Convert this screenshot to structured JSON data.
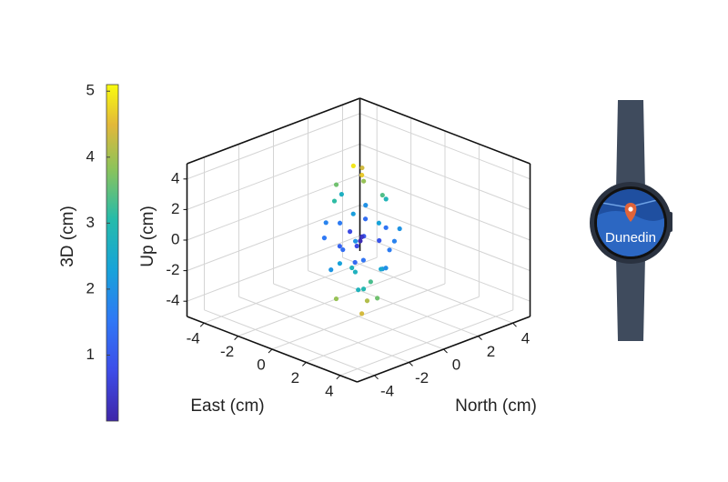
{
  "chart_data": {
    "type": "scatter3d",
    "xlabel": "East (cm)",
    "ylabel": "North (cm)",
    "zlabel": "Up (cm)",
    "xlim": [
      -5,
      5
    ],
    "xticks": [
      -4,
      -2,
      0,
      2,
      4
    ],
    "ylim": [
      -5,
      5
    ],
    "yticks": [
      -4,
      -2,
      0,
      2,
      4
    ],
    "zlim": [
      -5,
      5
    ],
    "zticks": [
      -4,
      -2,
      0,
      2,
      4
    ],
    "grid": true,
    "colormap": "parula",
    "colorbar": {
      "label": "3D (cm)",
      "lim": [
        0,
        5.1
      ],
      "ticks": [
        1,
        2,
        3,
        4,
        5
      ]
    },
    "x": [
      0.5,
      -0.4,
      0.2,
      -0.8,
      1.0,
      -0.3,
      0.7,
      -1.2,
      0.3,
      1.4,
      -0.6,
      0.1,
      -1.0,
      0.9,
      -0.2,
      1.6,
      -1.5,
      0.4,
      0.0,
      -0.5,
      1.1,
      -0.9,
      0.6,
      -1.3,
      0.2,
      1.3,
      -0.4,
      0.8,
      -1.1,
      0.3,
      1.0,
      -0.7,
      0.5,
      -0.2,
      0.9,
      -0.6,
      0.1,
      0.7,
      -1.0,
      1.5,
      -1.4,
      0.2,
      -0.1,
      0.4,
      -0.3
    ],
    "y": [
      -0.3,
      0.6,
      0.1,
      -0.5,
      0.4,
      -1.1,
      0.9,
      0.2,
      -0.6,
      -0.2,
      1.0,
      0.3,
      -0.9,
      0.7,
      -0.3,
      0.5,
      0.4,
      -1.3,
      0.1,
      0.8,
      -0.8,
      -0.2,
      1.2,
      1.1,
      -0.4,
      0.3,
      -1.2,
      0.6,
      0.0,
      1.0,
      -1.0,
      0.5,
      -0.2,
      0.9,
      0.2,
      -0.7,
      0.4,
      -0.5,
      0.6,
      0.9,
      -0.6,
      0.0,
      -0.2,
      0.8,
      0.2
    ],
    "z": [
      4.6,
      4.3,
      3.9,
      3.5,
      3.2,
      2.9,
      2.6,
      2.4,
      2.1,
      1.8,
      1.6,
      1.3,
      1.1,
      0.9,
      0.6,
      0.4,
      0.3,
      0.1,
      -0.1,
      -0.3,
      -0.5,
      -0.7,
      -0.9,
      -1.1,
      -1.2,
      -1.4,
      -1.6,
      -1.8,
      -2.0,
      -2.2,
      -2.4,
      -2.6,
      -2.9,
      -3.2,
      -3.5,
      -3.8,
      -4.1,
      -4.3,
      -2.5,
      1.0,
      -0.2,
      0.3,
      4.9,
      -0.2,
      -0.6
    ],
    "c": [
      4.64,
      4.36,
      3.91,
      3.62,
      3.38,
      3.12,
      2.84,
      2.69,
      2.2,
      2.29,
      1.98,
      1.34,
      1.73,
      1.45,
      0.7,
      1.72,
      1.58,
      1.36,
      0.14,
      0.99,
      1.45,
      1.16,
      1.61,
      2.02,
      1.28,
      1.93,
      2.04,
      2.06,
      2.28,
      2.44,
      2.78,
      2.74,
      2.95,
      3.33,
      3.62,
      3.91,
      4.12,
      4.38,
      2.76,
      2.01,
      1.54,
      0.36,
      4.91,
      0.92,
      0.7
    ]
  },
  "watch": {
    "label": "Dunedin"
  }
}
